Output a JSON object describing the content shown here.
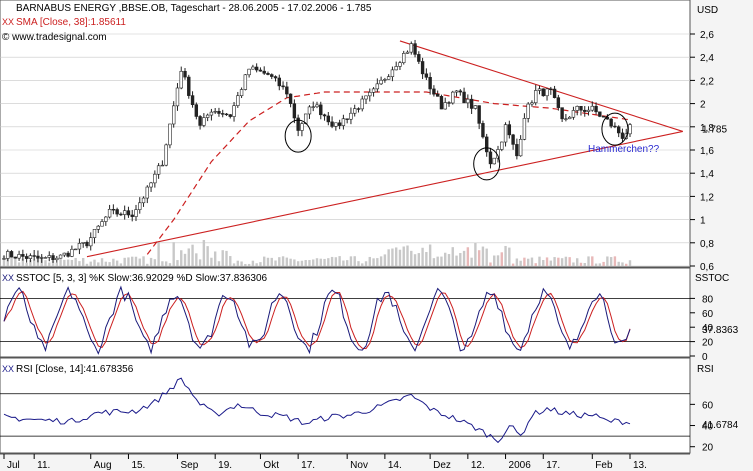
{
  "colors": {
    "background": "#ffffff",
    "grid": "#c8c8c8",
    "price_candle": "#222222",
    "sma": "#cc2020",
    "trendline": "#cc2020",
    "volume": "#c8c8c8",
    "stoch_k": "#1a1a7a",
    "stoch_d": "#cc2020",
    "rsi": "#1a1a8a",
    "annotation": "#2a2ad0",
    "level_line": "#000000"
  },
  "header": {
    "title": "BARNABUS ENERGY  ,BBSE.OB, Tageschart - 28.06.2005 - 17.02.2006 - 1.785",
    "sma_legend": "SMA [Close, 38]:1.85611",
    "source": "© www.tradesignal.com",
    "currency": "USD"
  },
  "annotation": {
    "text": "Hammerchen??"
  },
  "x_axis": {
    "labels": [
      "Jul",
      "11.",
      "Aug",
      "15.",
      "Sep",
      "19.",
      "Okt",
      "17.",
      "Nov",
      "14.",
      "Dez",
      "12.",
      "2006",
      "17.",
      "Feb",
      "13."
    ],
    "label_index": [
      0,
      8,
      23,
      33,
      46,
      56,
      68,
      78,
      91,
      101,
      113,
      123,
      133,
      143,
      156,
      166
    ]
  },
  "chart_data": [
    {
      "type": "candlestick",
      "title": "BARNABUS ENERGY ,BBSE.OB, Tageschart - 28.06.2005 - 17.02.2006 - 1.785",
      "ylabel": "USD",
      "ylim": [
        0.6,
        2.6
      ],
      "yticks": [
        0.6,
        0.8,
        1,
        1.2,
        1.4,
        1.6,
        1.8,
        2,
        2.2,
        2.4,
        2.6
      ],
      "last_value_label": "1.785",
      "close_keypoints": [
        [
          0,
          0.7
        ],
        [
          10,
          0.66
        ],
        [
          15,
          0.68
        ],
        [
          22,
          0.8
        ],
        [
          28,
          1.06
        ],
        [
          34,
          1.05
        ],
        [
          38,
          1.25
        ],
        [
          42,
          1.5
        ],
        [
          47,
          2.3
        ],
        [
          52,
          1.8
        ],
        [
          55,
          1.95
        ],
        [
          60,
          1.9
        ],
        [
          65,
          2.3
        ],
        [
          70,
          2.25
        ],
        [
          75,
          2.1
        ],
        [
          78,
          1.78
        ],
        [
          82,
          2.0
        ],
        [
          88,
          1.8
        ],
        [
          93,
          1.95
        ],
        [
          98,
          2.1
        ],
        [
          104,
          2.35
        ],
        [
          108,
          2.5
        ],
        [
          112,
          2.2
        ],
        [
          116,
          1.98
        ],
        [
          120,
          2.1
        ],
        [
          125,
          1.95
        ],
        [
          127,
          1.7
        ],
        [
          129,
          1.5
        ],
        [
          131,
          1.6
        ],
        [
          133,
          1.8
        ],
        [
          136,
          1.55
        ],
        [
          138,
          1.9
        ],
        [
          141,
          2.1
        ],
        [
          145,
          2.1
        ],
        [
          148,
          1.85
        ],
        [
          152,
          1.95
        ],
        [
          156,
          1.95
        ],
        [
          160,
          1.85
        ],
        [
          164,
          1.72
        ],
        [
          166,
          1.785
        ]
      ],
      "sma": {
        "name": "SMA [Close, 38]",
        "last_value": 1.85611,
        "keypoints": [
          [
            38,
            0.7
          ],
          [
            45,
            1.0
          ],
          [
            55,
            1.5
          ],
          [
            65,
            1.85
          ],
          [
            75,
            2.05
          ],
          [
            85,
            2.1
          ],
          [
            100,
            2.1
          ],
          [
            112,
            2.1
          ],
          [
            130,
            2.0
          ],
          [
            145,
            1.96
          ],
          [
            166,
            1.86
          ]
        ]
      },
      "trendlines": [
        {
          "from": [
            22,
            0.68
          ],
          "to": [
            180,
            1.76
          ]
        },
        {
          "from": [
            105,
            2.54
          ],
          "to": [
            180,
            1.76
          ]
        }
      ],
      "annotations": [
        {
          "type": "circle",
          "x": 78,
          "y": 1.72
        },
        {
          "type": "circle",
          "x": 128,
          "y": 1.48
        },
        {
          "type": "circle",
          "x": 162,
          "y": 1.78
        }
      ]
    },
    {
      "type": "line",
      "title": "SSTOC [5, 3, 3] %K Slow:36.92029 %D Slow:37.836306",
      "ylabel": "SSTOC",
      "ylim": [
        0,
        100
      ],
      "yticks": [
        0,
        20,
        40,
        60,
        80
      ],
      "levels": [
        20,
        80
      ],
      "last_value_label": "37.8363",
      "series": [
        {
          "name": "%K Slow",
          "last_value": 36.92029
        },
        {
          "name": "%D Slow",
          "last_value": 37.836306
        }
      ]
    },
    {
      "type": "line",
      "title": "RSI [Close, 14]:41.678356",
      "ylabel": "RSI",
      "ylim": [
        15,
        100
      ],
      "yticks": [
        20,
        40,
        60
      ],
      "levels": [
        30,
        70
      ],
      "last_value_label": "41.6784",
      "series": [
        {
          "name": "RSI [Close, 14]",
          "last_value": 41.678356,
          "keypoints": [
            [
              0,
              48
            ],
            [
              10,
              45
            ],
            [
              18,
              44
            ],
            [
              25,
              52
            ],
            [
              35,
              54
            ],
            [
              40,
              62
            ],
            [
              47,
              84
            ],
            [
              52,
              60
            ],
            [
              56,
              50
            ],
            [
              62,
              60
            ],
            [
              68,
              52
            ],
            [
              75,
              48
            ],
            [
              80,
              42
            ],
            [
              86,
              48
            ],
            [
              92,
              50
            ],
            [
              100,
              58
            ],
            [
              106,
              66
            ],
            [
              108,
              68
            ],
            [
              114,
              54
            ],
            [
              120,
              46
            ],
            [
              125,
              38
            ],
            [
              128,
              32
            ],
            [
              131,
              26
            ],
            [
              134,
              40
            ],
            [
              137,
              30
            ],
            [
              140,
              50
            ],
            [
              144,
              56
            ],
            [
              148,
              52
            ],
            [
              152,
              50
            ],
            [
              156,
              50
            ],
            [
              160,
              44
            ],
            [
              164,
              44
            ],
            [
              166,
              41.68
            ]
          ]
        }
      ]
    }
  ]
}
